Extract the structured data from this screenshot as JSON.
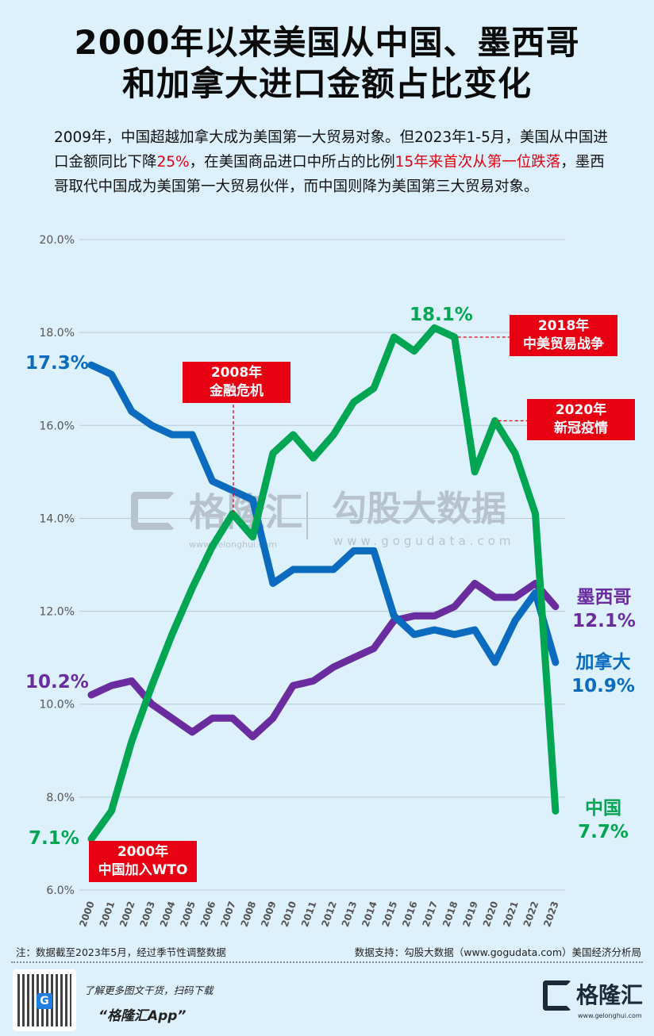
{
  "title": {
    "line1": "2000年以来美国从中国、墨西哥",
    "line2": "和加拿大进口金额占比变化"
  },
  "intro": {
    "p1": "2009年，中国超越加拿大成为美国第一大贸易对象。但2023年1-5月，美国从中国进口金额同比下降",
    "r1": "25%",
    "p2": "，在美国商品进口中所占的比例",
    "r2": "15年来首次从第一位跌落",
    "p3": "，墨西哥取代中国成为美国第一大贸易伙伴，而中国则降为美国第三大贸易对象。"
  },
  "chart_data": {
    "type": "line",
    "title": "2000年以来美国从中国、墨西哥和加拿大进口金额占比变化",
    "xlabel": "",
    "ylabel": "",
    "ylim": [
      6,
      20
    ],
    "yticks": [
      "6.0%",
      "8.0%",
      "10.0%",
      "12.0%",
      "14.0%",
      "16.0%",
      "18.0%",
      "20.0%"
    ],
    "x": [
      "2000",
      "2001",
      "2002",
      "2003",
      "2004",
      "2005",
      "2006",
      "2007",
      "2008",
      "2009",
      "2010",
      "2011",
      "2012",
      "2013",
      "2014",
      "2015",
      "2016",
      "2017",
      "2018",
      "2019",
      "2020",
      "2021",
      "2022",
      "2023"
    ],
    "grid": true,
    "series": [
      {
        "name": "中国",
        "color": "#00a651",
        "values": [
          7.1,
          7.7,
          9.2,
          10.4,
          11.5,
          12.5,
          13.4,
          14.1,
          13.6,
          15.4,
          15.8,
          15.3,
          15.8,
          16.5,
          16.8,
          17.9,
          17.6,
          18.1,
          17.9,
          15.0,
          16.1,
          15.4,
          14.1,
          7.7
        ],
        "start_label": "7.1%",
        "end_label": "7.7%",
        "peak_label": "18.1%"
      },
      {
        "name": "加拿大",
        "color": "#0a6bbf",
        "values": [
          17.3,
          17.1,
          16.3,
          16.0,
          15.8,
          15.8,
          14.8,
          14.6,
          14.4,
          12.6,
          12.9,
          12.9,
          12.9,
          13.3,
          13.3,
          11.9,
          11.5,
          11.6,
          11.5,
          11.6,
          10.9,
          11.8,
          12.4,
          10.9
        ],
        "start_label": "17.3%",
        "end_label": "10.9%"
      },
      {
        "name": "墨西哥",
        "color": "#6a2c9e",
        "values": [
          10.2,
          10.4,
          10.5,
          10.0,
          9.7,
          9.4,
          9.7,
          9.7,
          9.3,
          9.7,
          10.4,
          10.5,
          10.8,
          11.0,
          11.2,
          11.8,
          11.9,
          11.9,
          12.1,
          12.6,
          12.3,
          12.3,
          12.6,
          12.1
        ],
        "start_label": "10.2%",
        "end_label": "12.1%"
      }
    ],
    "annotations": [
      {
        "year": "2000年",
        "text": "中国加入WTO"
      },
      {
        "year": "2008年",
        "text": "金融危机"
      },
      {
        "year": "2018年",
        "text": "中美贸易战争"
      },
      {
        "year": "2020年",
        "text": "新冠疫情"
      }
    ]
  },
  "watermarks": {
    "left": "格隆汇",
    "left_url": "www.gelonghui.com",
    "right": "勾股大数据",
    "right_url": "www.gogudata.com"
  },
  "footer": {
    "note": "注：数据截至2023年5月，经过季节性调整数据",
    "source": "数据支持：勾股大数据（www.gogudata.com）美国经济分析局",
    "promo": "了解更多图文干货，扫码下载",
    "app": "“格隆汇App”",
    "logo_text": "格隆汇",
    "logo_url": "www.gelonghui.com"
  }
}
